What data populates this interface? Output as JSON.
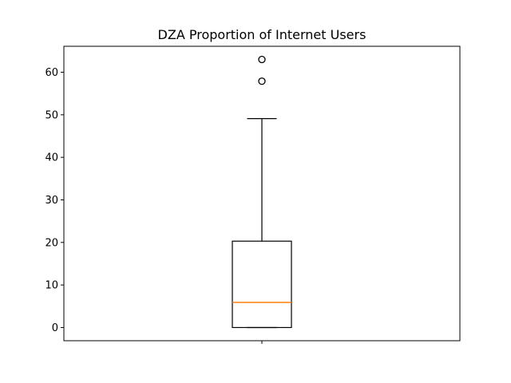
{
  "chart_data": {
    "type": "box",
    "title": "DZA Proportion of Internet Users",
    "xlabel": "",
    "ylabel": "",
    "x_tick_labels": [
      ""
    ],
    "ylim": [
      -3.1,
      66.1
    ],
    "yticks": [
      0,
      10,
      20,
      30,
      40,
      50,
      60
    ],
    "grid": false,
    "boxes": [
      {
        "whisker_low": 0,
        "q1": 0,
        "median": 5.9,
        "q3": 20.3,
        "whisker_high": 49.1,
        "outliers": [
          57.9,
          63.0
        ]
      }
    ],
    "colors": {
      "box": "#000000",
      "median": "#ff7f0e",
      "outlier": "#000000"
    }
  }
}
